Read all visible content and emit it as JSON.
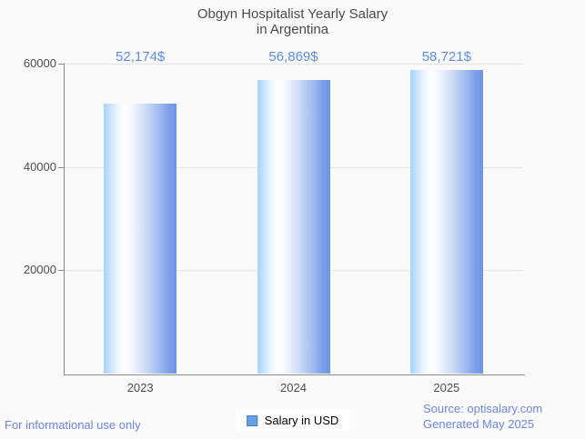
{
  "title": {
    "line1": "Obgyn Hospitalist Yearly Salary",
    "line2": "in Argentina"
  },
  "chart_data": {
    "type": "bar",
    "title": "Obgyn Hospitalist Yearly Salary in Argentina",
    "categories": [
      "2023",
      "2024",
      "2025"
    ],
    "series": [
      {
        "name": "Salary in USD",
        "values": [
          52174,
          56869,
          58721
        ]
      }
    ],
    "value_labels": [
      "52,174$",
      "56,869$",
      "58,721$"
    ],
    "ylabel": "",
    "xlabel": "",
    "ylim": [
      0,
      60000
    ],
    "yticks": [
      20000,
      40000,
      60000
    ],
    "grid": true,
    "legend_position": "bottom-center"
  },
  "legend": {
    "label": "Salary in USD"
  },
  "footer": {
    "left": "For informational use only",
    "source": "Source: optisalary.com",
    "generated": "Generated May 2025"
  },
  "colors": {
    "background": "#fafafa",
    "title_text": "#4a4a4a",
    "value_label_text": "#5b8dde",
    "tick_label_text": "#4d4d4d",
    "footer_text": "#6c86da",
    "axis_line": "#8a8a8a",
    "gridline": "#e5e5e5",
    "bar_gradient_left": "#a7d3fc",
    "bar_gradient_mid": "#ffffff",
    "bar_gradient_right": "#6c95e8",
    "legend_marker_fill": "#68a0e4",
    "legend_marker_border": "#4a7cc0"
  }
}
